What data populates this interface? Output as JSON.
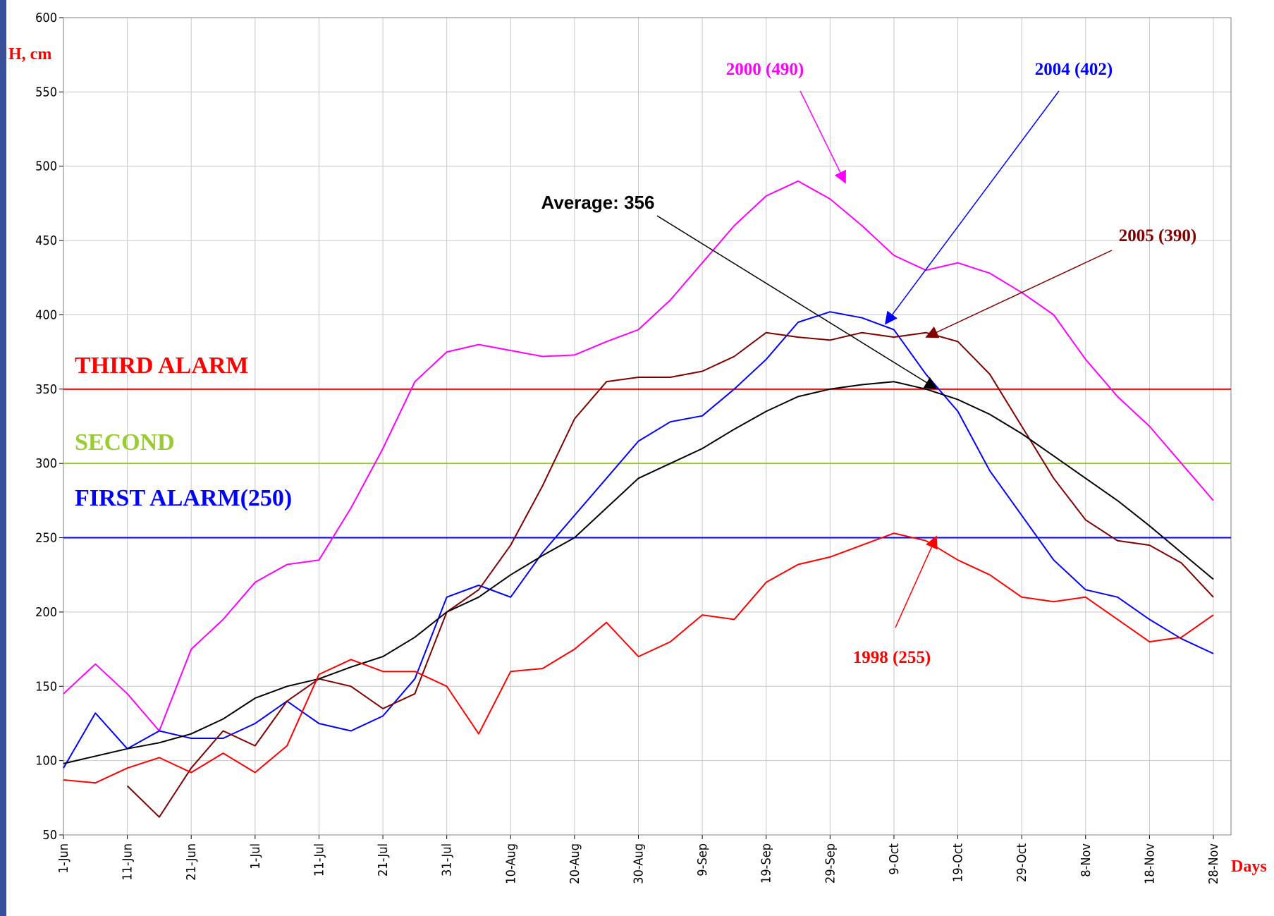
{
  "chart_data": {
    "type": "line",
    "y_label": "H, cm",
    "x_label": "Days",
    "ylim": [
      50,
      600
    ],
    "yticks": [
      50,
      100,
      150,
      200,
      250,
      300,
      350,
      400,
      450,
      500,
      550,
      600
    ],
    "grid": true,
    "categories": [
      "1-Jun",
      null,
      "11-Jun",
      null,
      "21-Jun",
      null,
      "1-Jul",
      null,
      "11-Jul",
      null,
      "21-Jul",
      null,
      "31-Jul",
      null,
      "10-Aug",
      null,
      "20-Aug",
      null,
      "30-Aug",
      null,
      "9-Sep",
      null,
      "19-Sep",
      null,
      "29-Sep",
      null,
      "9-Oct",
      null,
      "19-Oct",
      null,
      "29-Oct",
      null,
      "8-Nov",
      null,
      "18-Nov",
      null,
      "28-Nov"
    ],
    "thresholds": [
      {
        "label": "THIRD ALARM",
        "value": 350,
        "color": "#ff0000"
      },
      {
        "label": "SECOND",
        "value": 300,
        "color": "#99cc33"
      },
      {
        "label": "FIRST ALARM(250)",
        "value": 250,
        "color": "#0000ff"
      }
    ],
    "series": [
      {
        "name": "2000 (490)",
        "color": "#ff00ff",
        "values": [
          145,
          165,
          145,
          120,
          175,
          195,
          220,
          232,
          235,
          270,
          310,
          355,
          375,
          380,
          376,
          372,
          373,
          382,
          390,
          410,
          435,
          460,
          480,
          490,
          478,
          460,
          440,
          430,
          435,
          428,
          415,
          400,
          370,
          345,
          325,
          300,
          275
        ]
      },
      {
        "name": "2004 (402)",
        "color": "#0000ff",
        "values": [
          95,
          132,
          108,
          120,
          115,
          115,
          125,
          140,
          125,
          120,
          130,
          155,
          210,
          218,
          210,
          240,
          265,
          290,
          315,
          328,
          332,
          350,
          370,
          395,
          402,
          398,
          390,
          360,
          335,
          295,
          265,
          235,
          215,
          210,
          195,
          182,
          172
        ]
      },
      {
        "name": "2005 (390)",
        "color": "#800000",
        "values": [
          null,
          null,
          83,
          62,
          95,
          120,
          110,
          140,
          155,
          150,
          135,
          145,
          200,
          215,
          245,
          285,
          330,
          355,
          358,
          358,
          362,
          372,
          388,
          385,
          383,
          388,
          385,
          388,
          382,
          360,
          325,
          290,
          262,
          248,
          245,
          233,
          210
        ]
      },
      {
        "name": "Average: 356",
        "color": "#000000",
        "values": [
          98,
          103,
          108,
          112,
          118,
          128,
          142,
          150,
          155,
          163,
          170,
          183,
          200,
          210,
          225,
          238,
          250,
          270,
          290,
          300,
          310,
          323,
          335,
          345,
          350,
          353,
          355,
          350,
          343,
          333,
          320,
          305,
          290,
          275,
          258,
          240,
          222
        ]
      },
      {
        "name": "1998 (255)",
        "color": "#ff0000",
        "values": [
          87,
          85,
          95,
          102,
          92,
          105,
          92,
          110,
          158,
          168,
          160,
          160,
          150,
          118,
          160,
          162,
          175,
          193,
          170,
          180,
          198,
          195,
          220,
          232,
          237,
          245,
          253,
          248,
          235,
          225,
          210,
          207,
          210,
          195,
          180,
          183,
          198
        ]
      }
    ]
  }
}
